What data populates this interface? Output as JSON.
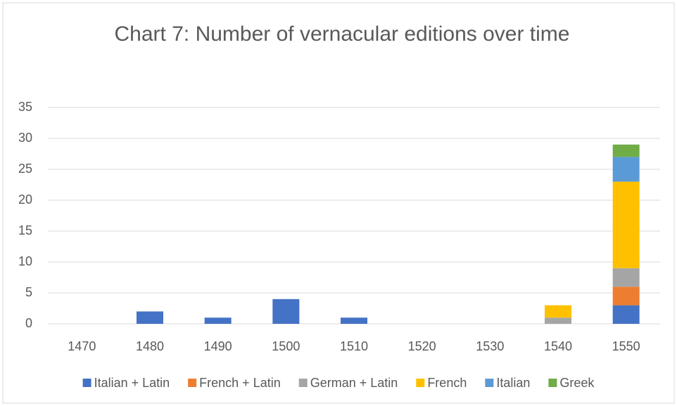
{
  "chart_data": {
    "type": "stacked_bar",
    "title": "Chart 7: Number of vernacular editions over time",
    "categories": [
      "1470",
      "1480",
      "1490",
      "1500",
      "1510",
      "1520",
      "1530",
      "1540",
      "1550"
    ],
    "series": [
      {
        "name": "Italian + Latin",
        "color": "#4472c4",
        "values": [
          0,
          2,
          1,
          4,
          1,
          0,
          0,
          0,
          3
        ]
      },
      {
        "name": "French + Latin",
        "color": "#ed7d31",
        "values": [
          0,
          0,
          0,
          0,
          0,
          0,
          0,
          0,
          3
        ]
      },
      {
        "name": "German + Latin",
        "color": "#a5a5a5",
        "values": [
          0,
          0,
          0,
          0,
          0,
          0,
          0,
          1,
          3
        ]
      },
      {
        "name": "French",
        "color": "#ffc000",
        "values": [
          0,
          0,
          0,
          0,
          0,
          0,
          0,
          2,
          14
        ]
      },
      {
        "name": "Italian",
        "color": "#5b9bd5",
        "values": [
          0,
          0,
          0,
          0,
          0,
          0,
          0,
          0,
          4
        ]
      },
      {
        "name": "Greek",
        "color": "#70ad47",
        "values": [
          0,
          0,
          0,
          0,
          0,
          0,
          0,
          0,
          2
        ]
      }
    ],
    "ylim": [
      0,
      35
    ],
    "yticks": [
      0,
      5,
      10,
      15,
      20,
      25,
      30,
      35
    ],
    "grid": true,
    "legend": "bottom"
  }
}
